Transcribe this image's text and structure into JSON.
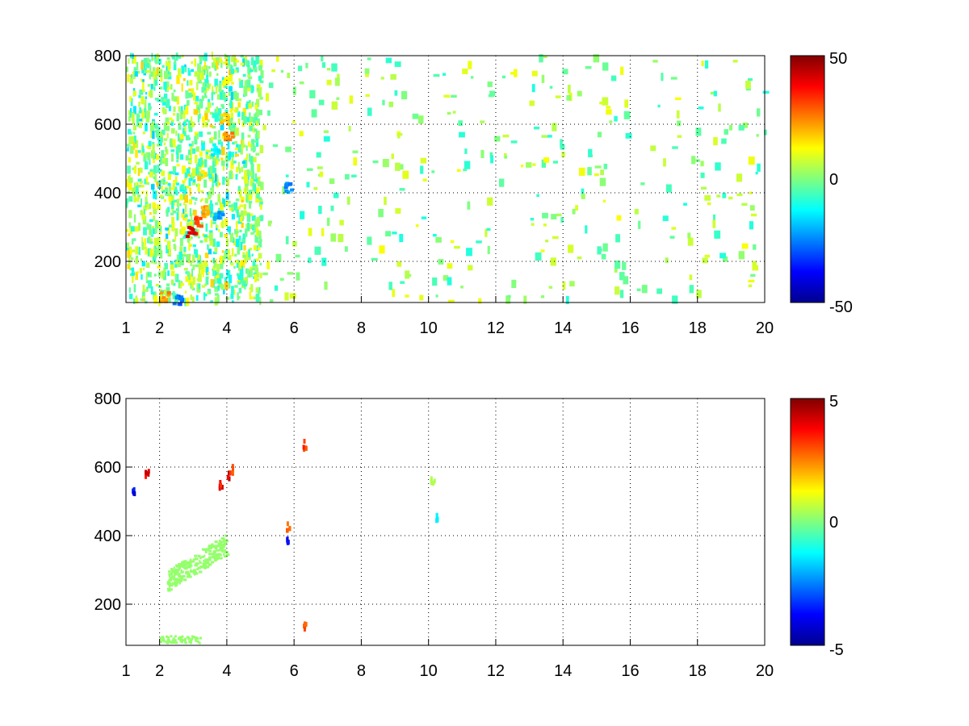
{
  "chart_data": [
    {
      "type": "heatmap",
      "title": "",
      "xlabel": "",
      "ylabel": "",
      "xlim": [
        1,
        20
      ],
      "ylim": [
        80,
        800
      ],
      "x_ticks": [
        "1",
        "2",
        "4",
        "6",
        "8",
        "10",
        "12",
        "14",
        "16",
        "18",
        "20"
      ],
      "y_ticks": [
        "200",
        "400",
        "600",
        "800"
      ],
      "grid": true,
      "colormap": "jet",
      "clim": [
        -50,
        50
      ],
      "colorbar_ticks": [
        "50",
        "0",
        "-50"
      ],
      "features": [
        {
          "x": 2.9,
          "y": 290,
          "value": 40
        },
        {
          "x": 3.1,
          "y": 320,
          "value": 30
        },
        {
          "x": 3.3,
          "y": 350,
          "value": 22
        },
        {
          "x": 3.7,
          "y": 340,
          "value": -22
        },
        {
          "x": 4.0,
          "y": 570,
          "value": 25
        },
        {
          "x": 3.9,
          "y": 620,
          "value": 18
        },
        {
          "x": 3.6,
          "y": 530,
          "value": -14
        },
        {
          "x": 2.5,
          "y": 90,
          "value": -28
        },
        {
          "x": 2.1,
          "y": 100,
          "value": 25
        },
        {
          "x": 5.8,
          "y": 420,
          "value": -25
        }
      ]
    },
    {
      "type": "heatmap",
      "title": "",
      "xlabel": "",
      "ylabel": "",
      "xlim": [
        1,
        20
      ],
      "ylim": [
        80,
        800
      ],
      "x_ticks": [
        "1",
        "2",
        "4",
        "6",
        "8",
        "10",
        "12",
        "14",
        "16",
        "18",
        "20"
      ],
      "y_ticks": [
        "200",
        "400",
        "600",
        "800"
      ],
      "grid": true,
      "colormap": "jet",
      "clim": [
        -5,
        5
      ],
      "colorbar_ticks": [
        "5",
        "0",
        "-5"
      ],
      "features": [
        {
          "x": 4.0,
          "y": 580,
          "value": 4.5
        },
        {
          "x": 3.8,
          "y": 555,
          "value": 4.0
        },
        {
          "x": 4.1,
          "y": 600,
          "value": 3.5
        },
        {
          "x": 5.8,
          "y": 430,
          "value": 3.0
        },
        {
          "x": 5.8,
          "y": 390,
          "value": -4.0
        },
        {
          "x": 10.1,
          "y": 570,
          "value": 0.5
        },
        {
          "x": 10.2,
          "y": 460,
          "value": -1.5
        },
        {
          "x": 6.3,
          "y": 670,
          "value": 3.5
        },
        {
          "x": 6.3,
          "y": 140,
          "value": 3.0
        },
        {
          "x": 1.6,
          "y": 590,
          "value": 4.0
        },
        {
          "x": 1.2,
          "y": 540,
          "value": -4.0
        }
      ]
    }
  ]
}
